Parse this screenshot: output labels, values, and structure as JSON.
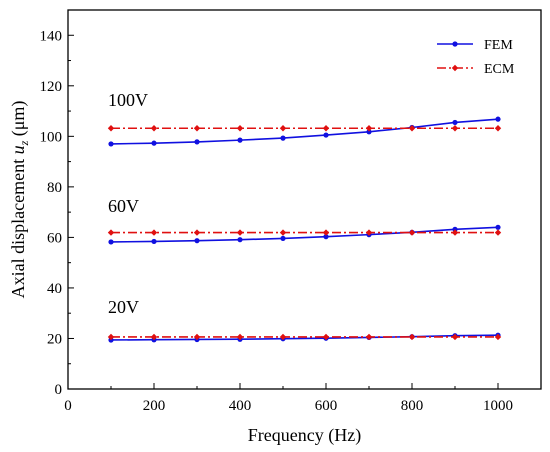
{
  "chart_data": {
    "type": "line",
    "xlabel": "Frequency (Hz)",
    "ylabel_main": "Axial displacement ",
    "ylabel_var": "u",
    "ylabel_sub": "z",
    "ylabel_unit": " (μm)",
    "xlim": [
      0,
      1100
    ],
    "ylim": [
      0,
      150
    ],
    "xticks": [
      0,
      200,
      400,
      600,
      800,
      1000
    ],
    "yticks": [
      0,
      20,
      40,
      60,
      80,
      100,
      120,
      140
    ],
    "x": [
      100,
      200,
      300,
      400,
      500,
      600,
      700,
      800,
      900,
      1000
    ],
    "series": [
      {
        "name": "FEM",
        "group": "100V",
        "color": "#1010e0",
        "style": "solid",
        "marker": "circle",
        "values": [
          97.0,
          97.3,
          97.8,
          98.5,
          99.3,
          100.5,
          101.8,
          103.5,
          105.5,
          106.8
        ]
      },
      {
        "name": "ECM",
        "group": "100V",
        "color": "#e01010",
        "style": "dashdot",
        "marker": "diamond",
        "values": [
          103.2,
          103.2,
          103.2,
          103.2,
          103.2,
          103.2,
          103.2,
          103.2,
          103.2,
          103.2
        ]
      },
      {
        "name": "FEM",
        "group": "60V",
        "color": "#1010e0",
        "style": "solid",
        "marker": "circle",
        "values": [
          58.2,
          58.4,
          58.7,
          59.1,
          59.6,
          60.3,
          61.1,
          62.0,
          63.2,
          64.0
        ]
      },
      {
        "name": "ECM",
        "group": "60V",
        "color": "#e01010",
        "style": "dashdot",
        "marker": "diamond",
        "values": [
          61.9,
          61.9,
          61.9,
          61.9,
          61.9,
          61.9,
          61.9,
          61.9,
          61.9,
          61.9
        ]
      },
      {
        "name": "FEM",
        "group": "20V",
        "color": "#1010e0",
        "style": "solid",
        "marker": "circle",
        "values": [
          19.4,
          19.5,
          19.6,
          19.7,
          19.9,
          20.1,
          20.4,
          20.7,
          21.1,
          21.3
        ]
      },
      {
        "name": "ECM",
        "group": "20V",
        "color": "#e01010",
        "style": "dashdot",
        "marker": "diamond",
        "values": [
          20.6,
          20.6,
          20.6,
          20.6,
          20.6,
          20.6,
          20.6,
          20.6,
          20.6,
          20.6
        ]
      }
    ],
    "annotations": [
      {
        "text": "100V",
        "x": 100,
        "y": 112
      },
      {
        "text": "60V",
        "x": 100,
        "y": 70
      },
      {
        "text": "20V",
        "x": 100,
        "y": 30
      }
    ],
    "legend": {
      "placement": "top-right",
      "entries": [
        {
          "name": "FEM",
          "color": "#1010e0",
          "style": "solid",
          "marker": "circle"
        },
        {
          "name": "ECM",
          "color": "#e01010",
          "style": "dashdot",
          "marker": "diamond"
        }
      ]
    },
    "grid": false
  }
}
